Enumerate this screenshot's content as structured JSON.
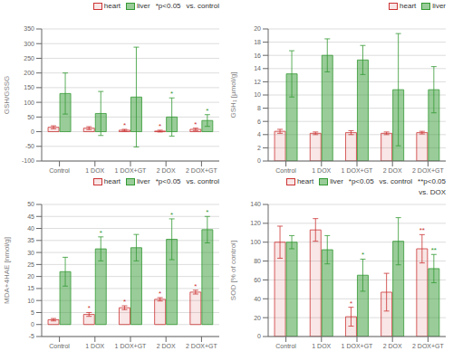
{
  "chart_data": [
    {
      "type": "bar",
      "ylabel": "GSH/GSSG",
      "categories": [
        "Control",
        "1 DOX",
        "1 DOX+GT",
        "2 DOX",
        "2 DOX+GT"
      ],
      "ylim": [
        -100,
        350
      ],
      "yticks": [
        -100,
        -50,
        0,
        50,
        100,
        150,
        200,
        250,
        300,
        350
      ],
      "grid": true,
      "legend": "upper right",
      "series": [
        {
          "name": "heart",
          "color": "#cc3333",
          "values": [
            15,
            12,
            5,
            2,
            8
          ],
          "errors": [
            5,
            5,
            3,
            3,
            4
          ],
          "annotations": [
            null,
            null,
            "*",
            "*",
            "*"
          ]
        },
        {
          "name": "liver",
          "color": "#339933",
          "values": [
            130,
            62,
            118,
            50,
            38
          ],
          "errors": [
            70,
            75,
            170,
            65,
            20
          ],
          "annotations": [
            null,
            null,
            null,
            "*",
            "*"
          ]
        }
      ],
      "legend_notes": [
        "*p<0.05",
        "vs. control"
      ]
    },
    {
      "type": "bar",
      "ylabel": "GSH₁ [μmol/g]",
      "categories": [
        "Control",
        "1 DOX",
        "1 DOX+GT",
        "2 DOX",
        "2 DOX+GT"
      ],
      "ylim": [
        0,
        20
      ],
      "yticks": [
        0,
        2,
        4,
        6,
        8,
        10,
        12,
        14,
        16,
        18,
        20
      ],
      "grid": true,
      "legend": "upper right",
      "series": [
        {
          "name": "heart",
          "color": "#cc3333",
          "values": [
            4.5,
            4.2,
            4.3,
            4.2,
            4.3
          ],
          "errors": [
            0.3,
            0.2,
            0.3,
            0.2,
            0.2
          ],
          "annotations": [
            null,
            null,
            null,
            null,
            null
          ]
        },
        {
          "name": "liver",
          "color": "#339933",
          "values": [
            13.2,
            16.0,
            15.3,
            10.8,
            10.8
          ],
          "errors": [
            3.5,
            2.5,
            2.2,
            8.5,
            3.5
          ],
          "annotations": [
            null,
            null,
            null,
            null,
            null
          ]
        }
      ],
      "legend_notes": []
    },
    {
      "type": "bar",
      "ylabel": "MDA+4HAE [nmol/g]",
      "categories": [
        "Control",
        "1 DOX",
        "1 DOX+GT",
        "2 DOX",
        "2 DOX+GT"
      ],
      "ylim": [
        -5,
        50
      ],
      "yticks": [
        -5,
        0,
        5,
        10,
        15,
        20,
        25,
        30,
        35,
        40,
        45,
        50
      ],
      "grid": true,
      "legend": "upper right",
      "series": [
        {
          "name": "heart",
          "color": "#cc3333",
          "values": [
            2.0,
            4.2,
            7.0,
            10.5,
            13.5
          ],
          "errors": [
            0.5,
            0.8,
            0.8,
            0.7,
            0.8
          ],
          "annotations": [
            null,
            "*",
            "*",
            "*",
            "*"
          ]
        },
        {
          "name": "liver",
          "color": "#339933",
          "values": [
            22.0,
            31.5,
            32.0,
            35.5,
            39.5
          ],
          "errors": [
            6.0,
            5.0,
            5.5,
            8.5,
            5.5
          ],
          "annotations": [
            null,
            "*",
            null,
            "*",
            "*"
          ]
        }
      ],
      "legend_notes": [
        "*p<0.05",
        "vs. control"
      ]
    },
    {
      "type": "bar",
      "ylabel": "SOD [% of control]",
      "categories": [
        "Control",
        "1 DOX",
        "1 DOX+GT",
        "2 DOX",
        "2 DOX+GT"
      ],
      "ylim": [
        0,
        140
      ],
      "yticks": [
        0,
        20,
        40,
        60,
        80,
        100,
        120,
        140
      ],
      "grid": true,
      "legend": "upper right",
      "series": [
        {
          "name": "heart",
          "color": "#cc3333",
          "values": [
            100,
            113,
            21,
            47,
            93
          ],
          "errors": [
            17,
            12,
            10,
            20,
            15
          ],
          "annotations": [
            null,
            null,
            "*",
            null,
            "**"
          ]
        },
        {
          "name": "liver",
          "color": "#339933",
          "values": [
            100,
            92,
            65,
            101,
            72
          ],
          "errors": [
            7,
            15,
            17,
            25,
            15
          ],
          "annotations": [
            null,
            null,
            "*",
            null,
            "**"
          ]
        }
      ],
      "legend_notes": [
        "*p<0.05",
        "vs. control",
        "**p<0.05",
        "vs. DOX"
      ]
    }
  ]
}
